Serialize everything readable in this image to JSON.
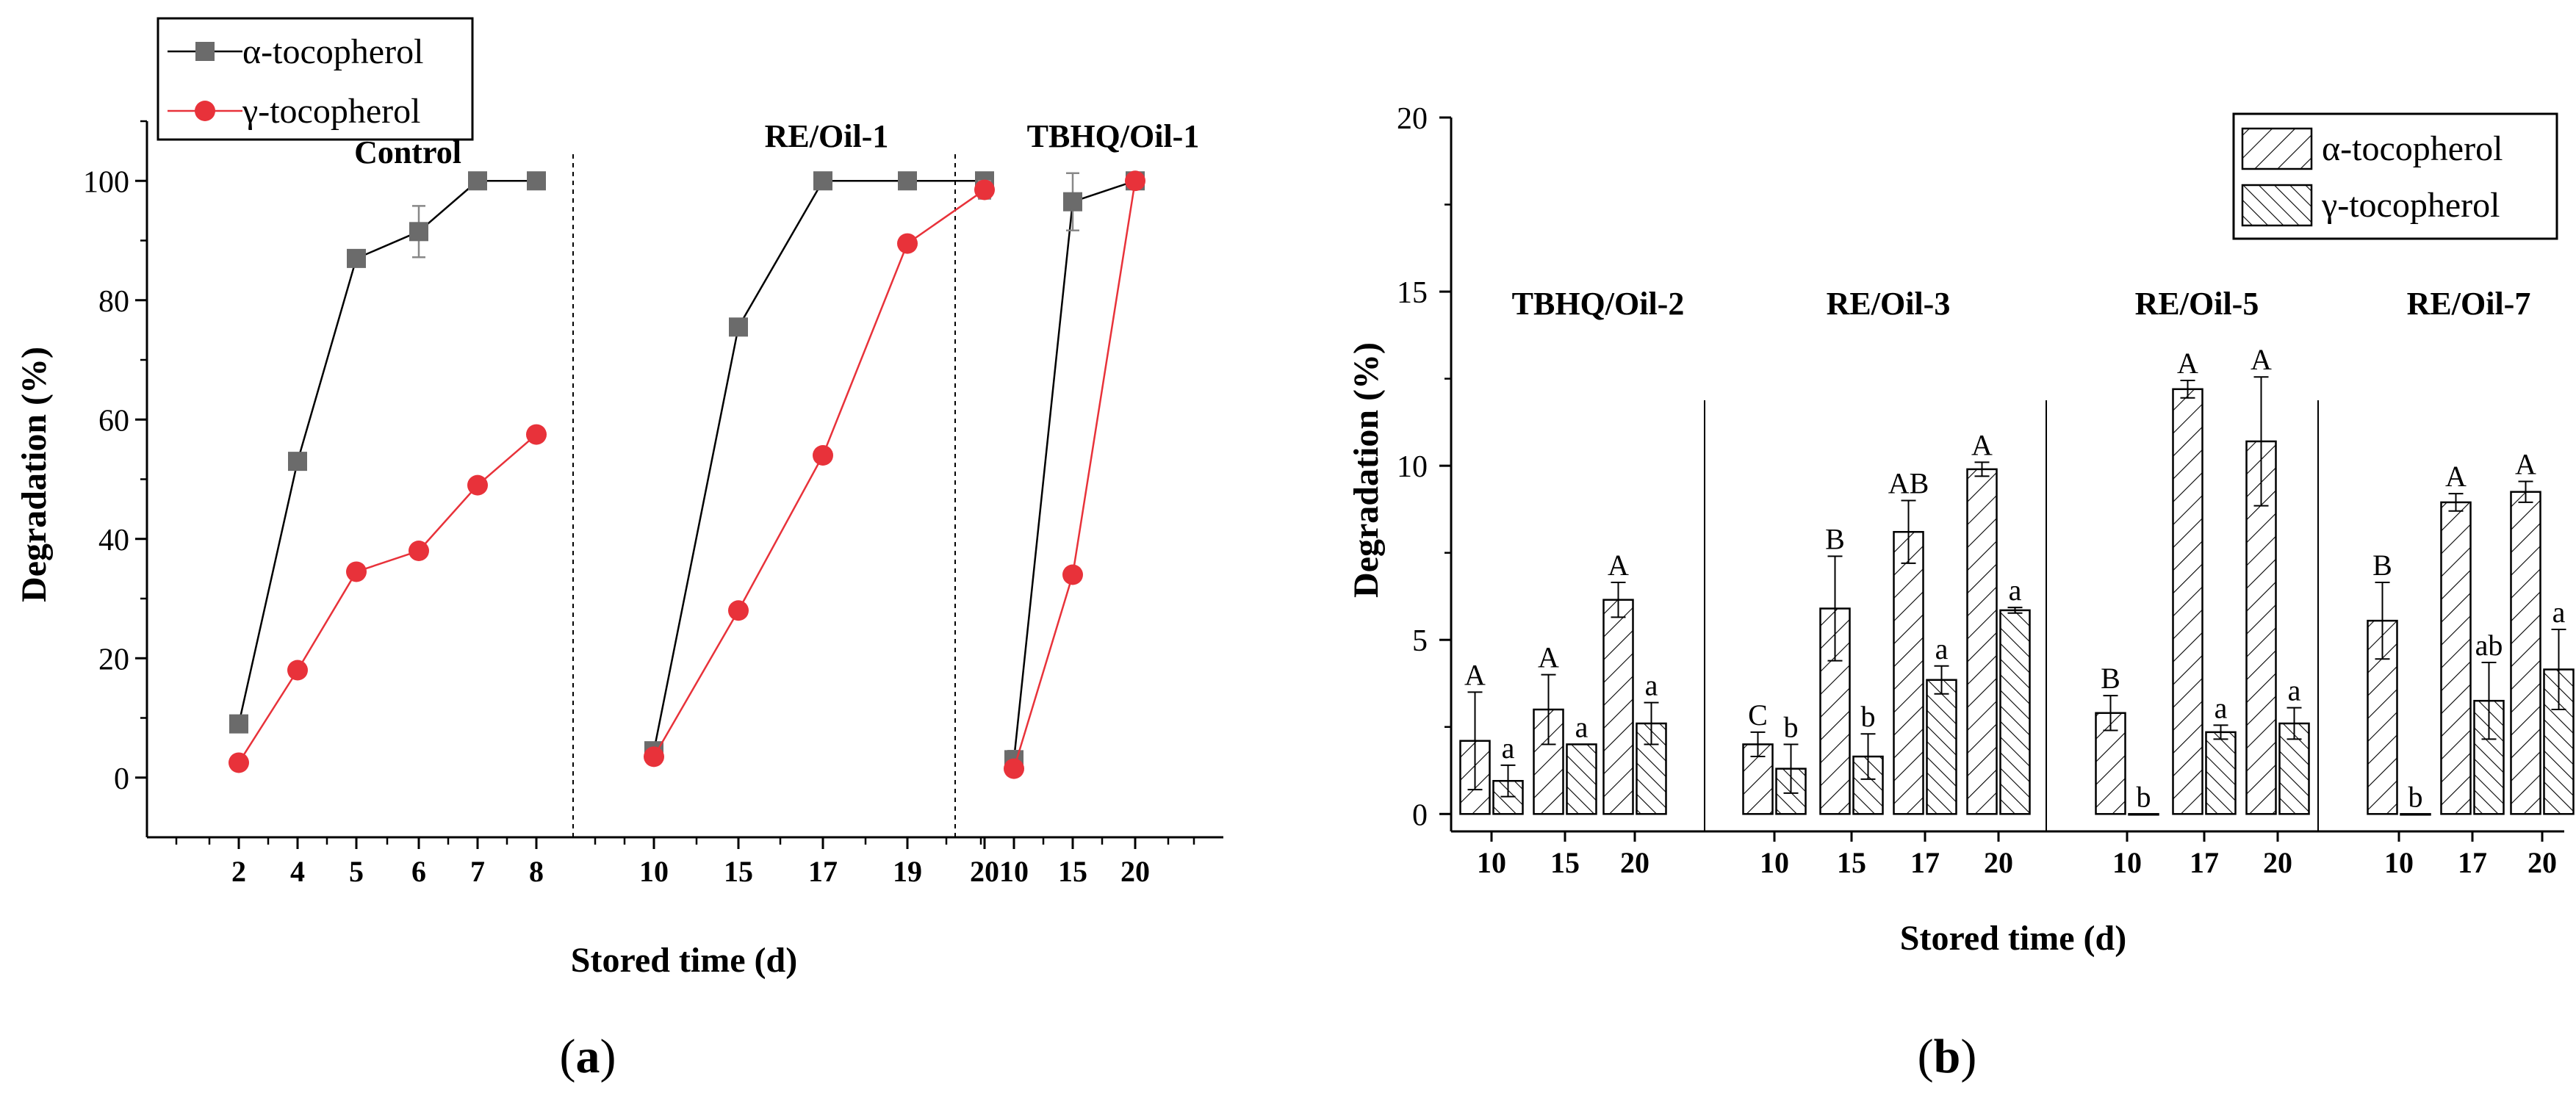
{
  "colors": {
    "alpha": "#6b6b6b",
    "gamma": "#e8323a",
    "axis": "#000000"
  },
  "chart_data": [
    {
      "type": "line",
      "panel_label": "a",
      "xlabel": "Stored time (d)",
      "ylabel": "Degradation (%)",
      "ylim": [
        -10,
        110
      ],
      "yticks": [
        0,
        20,
        40,
        60,
        80,
        100
      ],
      "legend": {
        "position": "top-left",
        "entries": [
          "α-tocopherol",
          "γ-tocopherol"
        ]
      },
      "groups": [
        {
          "name": "Control",
          "x": [
            "2",
            "4",
            "5",
            "6",
            "7",
            "8"
          ],
          "series": [
            {
              "name": "α-tocopherol",
              "values": [
                9,
                53,
                87,
                91.5,
                100,
                100
              ],
              "errors": [
                0,
                0,
                0,
                4.3,
                0,
                0
              ]
            },
            {
              "name": "γ-tocopherol",
              "values": [
                2.5,
                18,
                34.5,
                38,
                49,
                57.5
              ],
              "errors": [
                0,
                0,
                0,
                0,
                0,
                0
              ]
            }
          ]
        },
        {
          "name": "RE/Oil-1",
          "x": [
            "10",
            "15",
            "17",
            "19",
            "20"
          ],
          "series": [
            {
              "name": "α-tocopherol",
              "values": [
                4.5,
                75.5,
                100,
                100,
                100
              ],
              "errors": [
                0,
                0,
                0,
                0,
                0
              ]
            },
            {
              "name": "γ-tocopherol",
              "values": [
                3.5,
                28,
                54,
                89.5,
                98.5
              ],
              "errors": [
                0,
                0,
                0,
                0,
                1.5
              ]
            }
          ]
        },
        {
          "name": "TBHQ/Oil-1",
          "x": [
            "10",
            "15",
            "20"
          ],
          "series": [
            {
              "name": "α-tocopherol",
              "values": [
                3,
                96.5,
                100
              ],
              "errors": [
                1.5,
                4.8,
                0
              ]
            },
            {
              "name": "γ-tocopherol",
              "values": [
                1.5,
                34,
                100
              ],
              "errors": [
                0,
                0,
                0
              ]
            }
          ]
        }
      ]
    },
    {
      "type": "bar",
      "panel_label": "b",
      "xlabel": "Stored time (d)",
      "ylabel": "Degradation (%)",
      "ylim": [
        -0.5,
        20
      ],
      "yticks": [
        0,
        5,
        10,
        15,
        20
      ],
      "legend": {
        "position": "top-right",
        "entries": [
          "α-tocopherol",
          "γ-tocopherol"
        ]
      },
      "groups": [
        {
          "name": "TBHQ/Oil-2",
          "categories": [
            "10",
            "15",
            "20"
          ],
          "series": [
            {
              "name": "α-tocopherol",
              "values": [
                2.1,
                3.0,
                6.15
              ],
              "errors": [
                1.4,
                1.0,
                0.5
              ],
              "letters": [
                "A",
                "A",
                "A"
              ]
            },
            {
              "name": "γ-tocopherol",
              "values": [
                0.95,
                2.0,
                2.6
              ],
              "errors": [
                0.45,
                0,
                0.6
              ],
              "letters": [
                "a",
                "a",
                "a"
              ]
            }
          ]
        },
        {
          "name": "RE/Oil-3",
          "categories": [
            "10",
            "15",
            "17",
            "20"
          ],
          "series": [
            {
              "name": "α-tocopherol",
              "values": [
                2.0,
                5.9,
                8.1,
                9.9
              ],
              "errors": [
                0.35,
                1.5,
                0.9,
                0.2
              ],
              "letters": [
                "C",
                "B",
                "AB",
                "A"
              ]
            },
            {
              "name": "γ-tocopherol",
              "values": [
                1.3,
                1.65,
                3.85,
                5.85
              ],
              "errors": [
                0.7,
                0.65,
                0.4,
                0.08
              ],
              "letters": [
                "b",
                "b",
                "a",
                "a"
              ]
            }
          ]
        },
        {
          "name": "RE/Oil-5",
          "categories": [
            "10",
            "17",
            "20"
          ],
          "series": [
            {
              "name": "α-tocopherol",
              "values": [
                2.9,
                12.2,
                10.7
              ],
              "errors": [
                0.5,
                0.25,
                1.85
              ],
              "letters": [
                "B",
                "A",
                "A"
              ]
            },
            {
              "name": "γ-tocopherol",
              "values": [
                0.0,
                2.35,
                2.6
              ],
              "errors": [
                0,
                0.2,
                0.45
              ],
              "letters": [
                "b",
                "a",
                "a"
              ]
            }
          ]
        },
        {
          "name": "RE/Oil-7",
          "categories": [
            "10",
            "17",
            "20"
          ],
          "series": [
            {
              "name": "α-tocopherol",
              "values": [
                5.55,
                8.95,
                9.25
              ],
              "errors": [
                1.1,
                0.25,
                0.3
              ],
              "letters": [
                "B",
                "A",
                "A"
              ]
            },
            {
              "name": "γ-tocopherol",
              "values": [
                0.0,
                3.25,
                4.15
              ],
              "errors": [
                0,
                1.1,
                1.15
              ],
              "letters": [
                "b",
                "ab",
                "a"
              ]
            }
          ]
        }
      ]
    }
  ]
}
